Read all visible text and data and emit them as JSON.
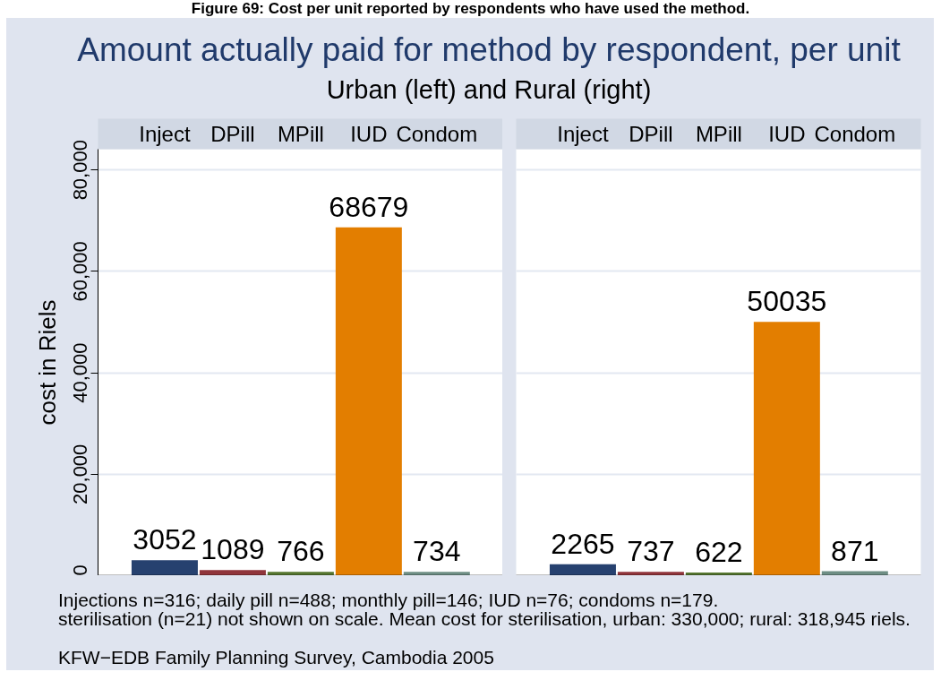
{
  "chart_data": [
    {
      "type": "bar",
      "title": "Amount actually paid for method by respondent, per unit",
      "subtitle": "Urban (left) and Rural (right)",
      "ylabel": "cost in Riels",
      "categories": [
        "Inject",
        "DPill",
        "MPill",
        "IUD",
        "Condom"
      ],
      "values": [
        3052,
        1089,
        766,
        68679,
        734
      ],
      "colors": [
        "#26416f",
        "#90353b",
        "#55752f",
        "#e37e00",
        "#6e8e84"
      ],
      "ylim": [
        0,
        84100
      ],
      "yticks": [
        0,
        {
          "value": 20000,
          "label": "20,000"
        },
        {
          "value": 40000,
          "label": "40,000"
        },
        {
          "value": 60000,
          "label": "60,000"
        },
        {
          "value": 80000,
          "label": "80,000"
        }
      ],
      "grid": "y",
      "data_labels": true,
      "annotations": [
        "Figure 69: Cost per unit reported by respondents who have used the method.",
        "Injections n=316; daily pill n=488; monthly pill=146; IUD n=76; condoms n=179.",
        "sterilisation (n=21) not shown on scale. Mean cost for sterilisation, urban: 330,000; rural: 318,945 riels.",
        "KFW−EDB Family Planning Survey, Cambodia 2005"
      ]
    },
    {
      "type": "bar",
      "categories": [
        "Inject",
        "DPill",
        "MPill",
        "IUD",
        "Condom"
      ],
      "values": [
        2265,
        737,
        622,
        50035,
        871
      ],
      "colors": [
        "#26416f",
        "#90353b",
        "#55752f",
        "#e37e00",
        "#6e8e84"
      ],
      "ylim": [
        0,
        84100
      ],
      "yticks": [
        {
          "value": 0,
          "label": null
        },
        {
          "value": 20000,
          "label": null
        },
        {
          "value": 40000,
          "label": null
        },
        {
          "value": 60000,
          "label": null
        },
        {
          "value": 80000,
          "label": null
        }
      ],
      "grid": "y",
      "data_labels": true,
      "tick_labels": "x"
    }
  ]
}
